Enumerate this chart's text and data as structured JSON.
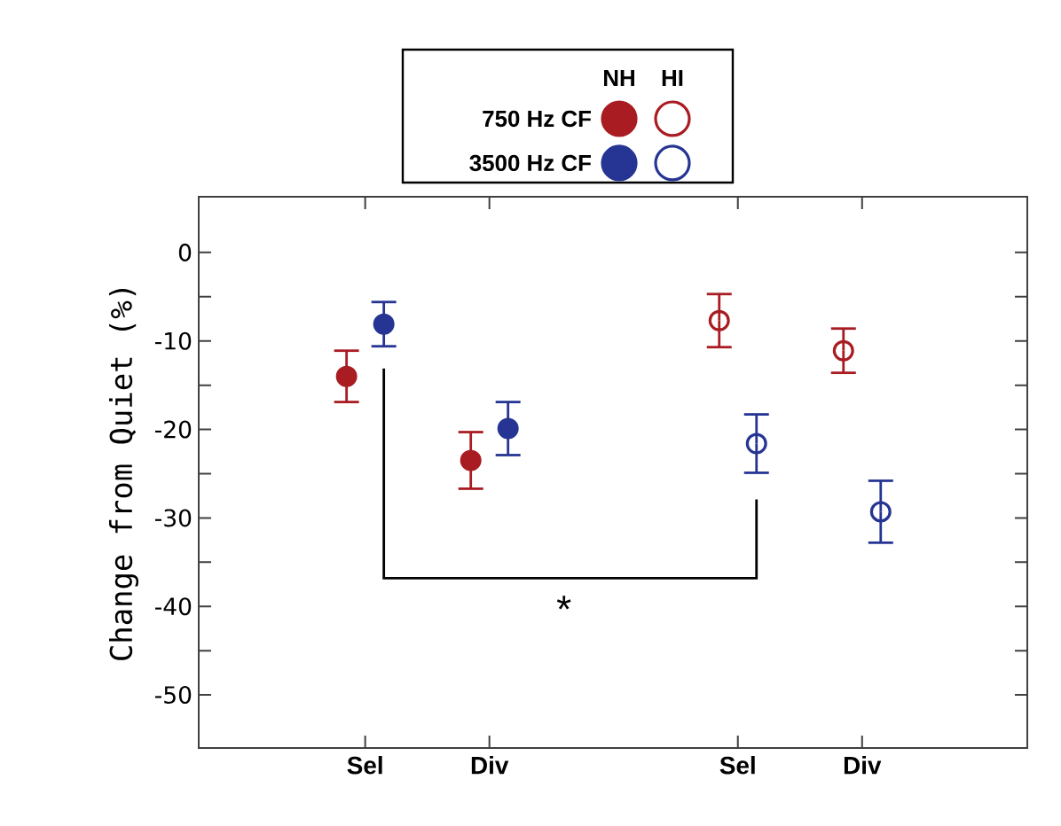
{
  "chart_data": {
    "type": "scatter",
    "ylabel": "Change from Quiet (%)",
    "categories": [
      "Sel",
      "Div",
      null,
      "Sel",
      "Div"
    ],
    "ylim": [
      -56,
      6.3
    ],
    "yticks": [
      0,
      {
        "value": -5,
        "label": null
      },
      -10,
      {
        "value": -15,
        "label": null
      },
      -20,
      {
        "value": -25,
        "label": null
      },
      -30,
      {
        "value": -35,
        "label": null
      },
      -40,
      {
        "value": -45,
        "label": null
      },
      -50
    ],
    "marker": "circle",
    "legend": "top",
    "series": [
      {
        "name": "750 Hz CF",
        "color": "#a81c22",
        "values": [
          -14.0,
          -23.5,
          null,
          null,
          null
        ],
        "errors": [
          2.9,
          3.2,
          null,
          null,
          null
        ]
      },
      {
        "name": "3500 Hz CF",
        "color": "#263593",
        "values": [
          -8.1,
          -19.9,
          null,
          null,
          null
        ],
        "errors": [
          2.5,
          3.0,
          null,
          null,
          null
        ]
      },
      {
        "color": "#a81c22",
        "values": [
          null,
          null,
          null,
          -7.7,
          -11.1
        ],
        "errors": [
          null,
          null,
          null,
          3.0,
          2.5
        ]
      },
      {
        "color": "#263593",
        "values": [
          null,
          null,
          null,
          -21.6,
          -29.3
        ],
        "errors": [
          null,
          null,
          null,
          3.3,
          3.5
        ]
      }
    ],
    "annotations": [
      "NH",
      "HI",
      "*"
    ]
  }
}
